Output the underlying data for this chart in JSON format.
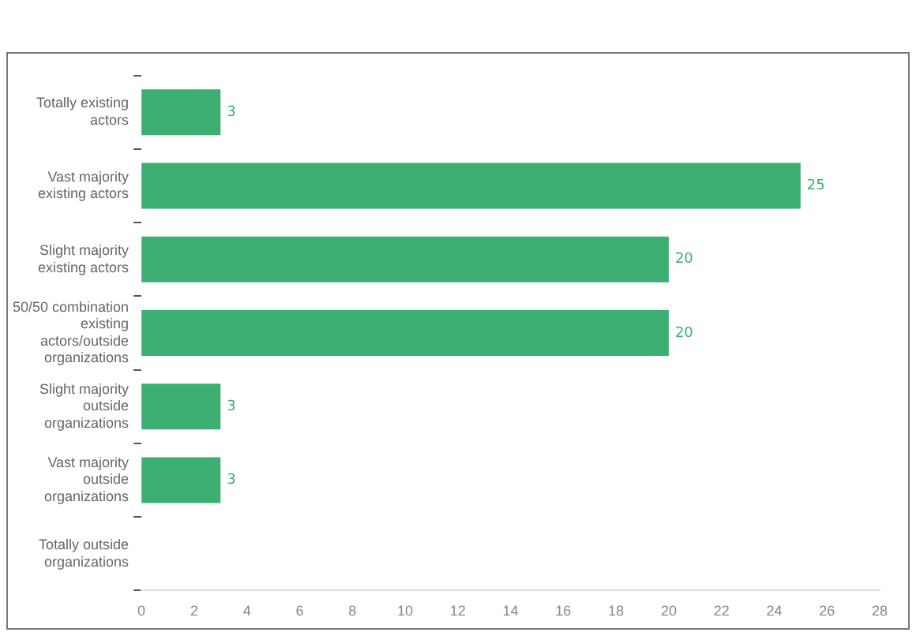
{
  "chart_data": {
    "type": "bar",
    "orientation": "horizontal",
    "categories": [
      "Totally existing actors",
      "Vast majority existing actors",
      "Slight majority existing actors",
      "50/50 combination existing actors/outside organizations",
      "Slight majority outside organizations",
      "Vast majority outside organizations",
      "Totally outside organizations"
    ],
    "values": [
      3,
      25,
      20,
      20,
      3,
      3,
      null
    ],
    "color": "#3daf72",
    "xlim": [
      0,
      28
    ],
    "xticks": [
      0,
      2,
      4,
      6,
      8,
      10,
      12,
      14,
      16,
      18,
      20,
      22,
      24,
      26,
      28
    ],
    "grid": false,
    "legend": false,
    "data_labels": true
  }
}
